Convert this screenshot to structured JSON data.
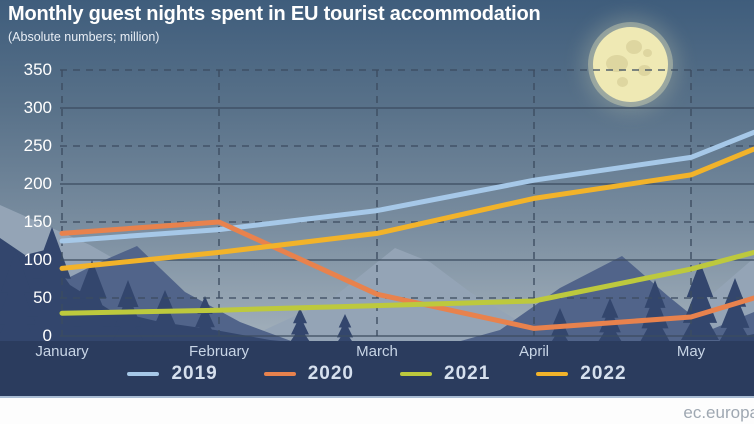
{
  "header": {
    "title": "Monthly guest nights spent in EU tourist accommodation",
    "subtitle": "(Absolute numbers; million)"
  },
  "footer": {
    "watermark": "ec.europa"
  },
  "chart_data": {
    "type": "line",
    "title": "Monthly guest nights spent in EU tourist accommodation",
    "subtitle": "(Absolute numbers; million)",
    "categories": [
      "January",
      "February",
      "March",
      "April",
      "May"
    ],
    "series": [
      {
        "name": "2019",
        "color": "#a6c8e8",
        "values": [
          125,
          140,
          165,
          205,
          235
        ],
        "edge_value": 268
      },
      {
        "name": "2020",
        "color": "#e8824d",
        "values": [
          135,
          150,
          55,
          10,
          25
        ],
        "edge_value": 50
      },
      {
        "name": "2021",
        "color": "#bdc93d",
        "values": [
          30,
          34,
          40,
          46,
          88
        ],
        "edge_value": 110
      },
      {
        "name": "2022",
        "color": "#f2b32a",
        "values": [
          89,
          110,
          135,
          181,
          212
        ],
        "edge_value": 246
      }
    ],
    "ylim": [
      0,
      350
    ],
    "ytick_step": 50,
    "yticks": [
      350,
      300,
      250,
      200,
      150,
      100,
      50,
      0
    ],
    "legend_position": "bottom",
    "grid": "horizontal lines every 50 (alternating solid/dashed), vertical dashed line at each month",
    "note": "lines continue past May to the right image edge (partial next month)"
  },
  "scene": {
    "sky_top": "#3f5d7c",
    "sky_bottom": "#b0bbc4",
    "moon": "#efe9b4",
    "moon_spot": "#ded6a0",
    "mountain_far": "#94a4b6",
    "mountain_mid": "#51648a",
    "mountain_near": "#33466d",
    "panel": "#2b3c5e",
    "footer_bg": "#fdfdfd",
    "watermark_color": "#9fa8b2",
    "gridline": "#3c4c60",
    "tick_color": "#ffffff",
    "month_color": "#c8d5e6",
    "legend_text": "#d6e0ee"
  }
}
